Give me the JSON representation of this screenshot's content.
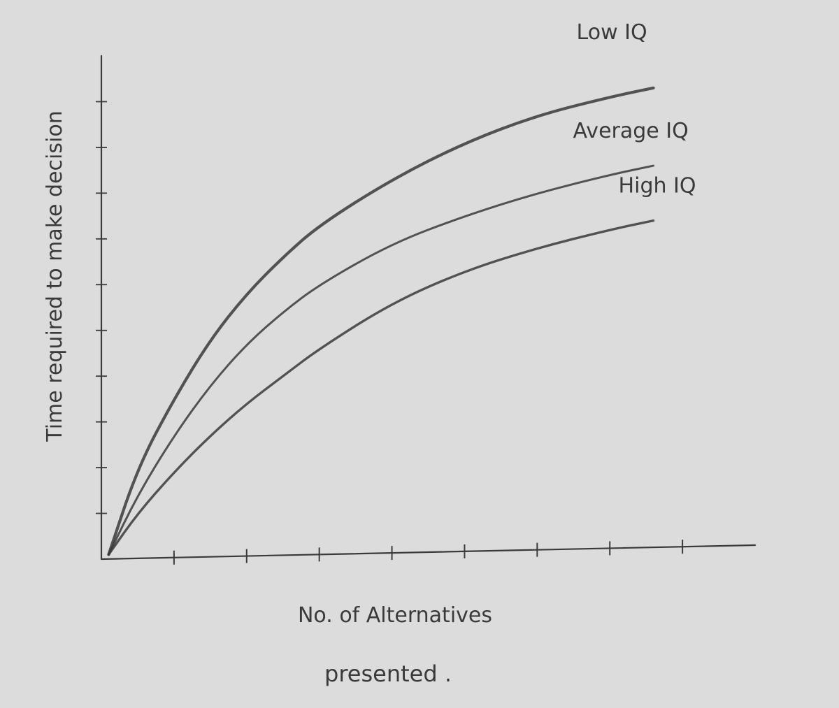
{
  "chart_data": {
    "type": "line",
    "title": "",
    "xlabel": "No. of Alternatives presented",
    "xlabel_lines": [
      "No. of Alternatives",
      "presented ."
    ],
    "ylabel": "Time required to make decision",
    "x_ticks": [
      1,
      2,
      3,
      4,
      5,
      6,
      7,
      8
    ],
    "xlim": [
      0,
      9
    ],
    "y_ticks": [
      1,
      2,
      3,
      4,
      5,
      6,
      7,
      8,
      9,
      10
    ],
    "ylim": [
      0,
      11
    ],
    "grid": false,
    "legend": "direct labels at line ends",
    "colors": {
      "paper": "#dcdcdc",
      "pencil": "#3a3a3a"
    },
    "series": [
      {
        "name": "Low IQ",
        "x": [
          0.1,
          0.5,
          1.0,
          1.5,
          2.0,
          2.5,
          3.0,
          4.0,
          5.0,
          6.0,
          7.0,
          7.6
        ],
        "y": [
          0.1,
          2.0,
          3.5,
          4.8,
          5.8,
          6.6,
          7.3,
          8.3,
          9.1,
          9.7,
          10.1,
          10.3
        ]
      },
      {
        "name": "Average IQ",
        "x": [
          0.1,
          0.5,
          1.0,
          1.5,
          2.0,
          2.5,
          3.0,
          4.0,
          5.0,
          6.0,
          7.0,
          7.6
        ],
        "y": [
          0.1,
          1.4,
          2.7,
          3.8,
          4.7,
          5.4,
          6.0,
          6.9,
          7.5,
          8.0,
          8.4,
          8.6
        ]
      },
      {
        "name": "High IQ",
        "x": [
          0.1,
          0.5,
          1.0,
          1.5,
          2.0,
          2.5,
          3.0,
          4.0,
          5.0,
          6.0,
          7.0,
          7.6
        ],
        "y": [
          0.1,
          1.0,
          1.9,
          2.7,
          3.4,
          4.0,
          4.6,
          5.6,
          6.3,
          6.8,
          7.2,
          7.4
        ]
      }
    ]
  }
}
